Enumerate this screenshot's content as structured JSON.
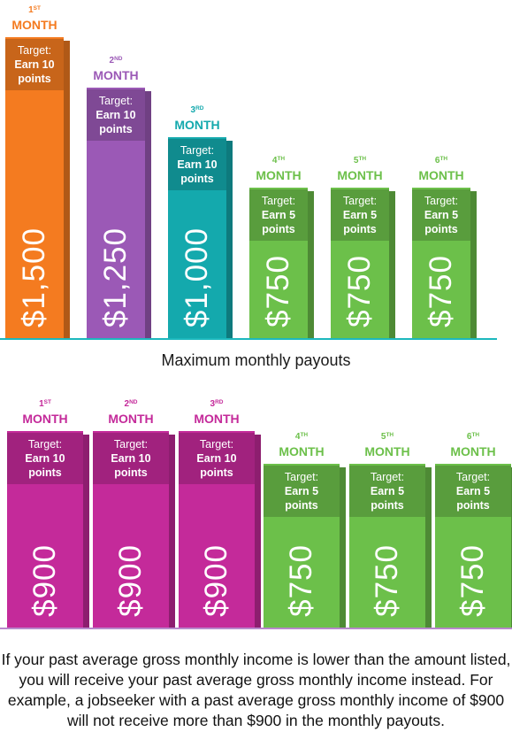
{
  "colors": {
    "orange": "#f47b20",
    "purple": "#9b59b6",
    "teal": "#14a9ad",
    "green": "#6cc04a",
    "magenta": "#c42a9a",
    "orange_label": "#f47b20",
    "purple_label": "#9b59b6",
    "teal_label": "#14a9ad",
    "green_label": "#6cc04a",
    "magenta_label": "#c42a9a",
    "baseline_top": "#1cb8bd",
    "baseline_bottom": "#c9a0dc"
  },
  "chart_data": [
    {
      "type": "bar",
      "title": "Maximum monthly payouts",
      "categories": [
        "1ST MONTH",
        "2ND MONTH",
        "3RD MONTH",
        "4TH MONTH",
        "5TH MONTH",
        "6TH MONTH"
      ],
      "months": [
        {
          "ord": "1",
          "sup": "ST",
          "word": "MONTH"
        },
        {
          "ord": "2",
          "sup": "ND",
          "word": "MONTH"
        },
        {
          "ord": "3",
          "sup": "RD",
          "word": "MONTH"
        },
        {
          "ord": "4",
          "sup": "TH",
          "word": "MONTH"
        },
        {
          "ord": "5",
          "sup": "TH",
          "word": "MONTH"
        },
        {
          "ord": "6",
          "sup": "TH",
          "word": "MONTH"
        }
      ],
      "values": [
        1500,
        1250,
        1000,
        750,
        750,
        750
      ],
      "value_labels": [
        "$1,500",
        "$1,250",
        "$1,000",
        "$750",
        "$750",
        "$750"
      ],
      "target_label": "Target:",
      "targets": [
        "Earn 10 points",
        "Earn 10 points",
        "Earn 10 points",
        "Earn 5 points",
        "Earn 5 points",
        "Earn 5 points"
      ],
      "bar_colors": [
        "orange",
        "purple",
        "teal",
        "green",
        "green",
        "green"
      ]
    },
    {
      "type": "bar",
      "title": "",
      "categories": [
        "1ST MONTH",
        "2ND MONTH",
        "3RD MONTH",
        "4TH MONTH",
        "5TH MONTH",
        "6TH MONTH"
      ],
      "months": [
        {
          "ord": "1",
          "sup": "ST",
          "word": "MONTH"
        },
        {
          "ord": "2",
          "sup": "ND",
          "word": "MONTH"
        },
        {
          "ord": "3",
          "sup": "RD",
          "word": "MONTH"
        },
        {
          "ord": "4",
          "sup": "TH",
          "word": "MONTH"
        },
        {
          "ord": "5",
          "sup": "TH",
          "word": "MONTH"
        },
        {
          "ord": "6",
          "sup": "TH",
          "word": "MONTH"
        }
      ],
      "values": [
        900,
        900,
        900,
        750,
        750,
        750
      ],
      "value_labels": [
        "$900",
        "$900",
        "$900",
        "$750",
        "$750",
        "$750"
      ],
      "target_label": "Target:",
      "targets": [
        "Earn 10 points",
        "Earn 10 points",
        "Earn 10 points",
        "Earn 5 points",
        "Earn 5 points",
        "Earn 5 points"
      ],
      "bar_colors": [
        "magenta",
        "magenta",
        "magenta",
        "green",
        "green",
        "green"
      ]
    }
  ],
  "footnote": "If your past average gross monthly income is lower than the amount listed, you will receive your past average gross monthly income instead. For example, a jobseeker with a past average gross monthly income of $900 will not receive more than $900 in the monthly payouts."
}
